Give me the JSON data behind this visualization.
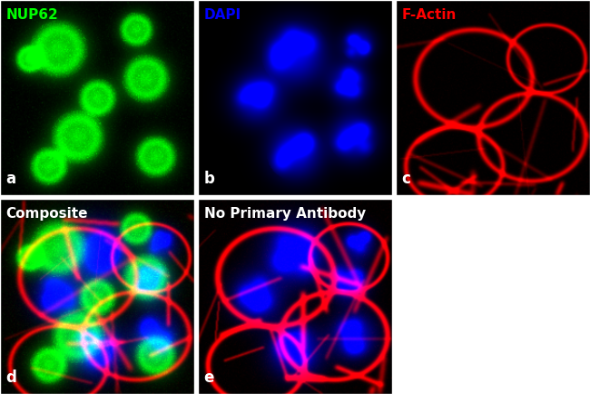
{
  "panels": [
    {
      "id": "a",
      "label": "NUP62",
      "label_color": "#00ff00",
      "letter": "a",
      "bg_color": "#000000",
      "channel": "green",
      "row": 0,
      "col": 0
    },
    {
      "id": "b",
      "label": "DAPI",
      "label_color": "#0000ff",
      "letter": "b",
      "bg_color": "#000000",
      "channel": "blue",
      "row": 0,
      "col": 1
    },
    {
      "id": "c",
      "label": "F-Actin",
      "label_color": "#ff0000",
      "letter": "c",
      "bg_color": "#000000",
      "channel": "red",
      "row": 0,
      "col": 2
    },
    {
      "id": "d",
      "label": "Composite",
      "label_color": "#ffffff",
      "letter": "d",
      "bg_color": "#000000",
      "channel": "composite",
      "row": 1,
      "col": 0
    },
    {
      "id": "e",
      "label": "No Primary Antibody",
      "label_color": "#ffffff",
      "letter": "e",
      "bg_color": "#000000",
      "channel": "no_primary",
      "row": 1,
      "col": 1
    }
  ],
  "figure_bg": "#ffffff",
  "border_color": "#ffffff",
  "label_fontsize": 11,
  "letter_fontsize": 12
}
